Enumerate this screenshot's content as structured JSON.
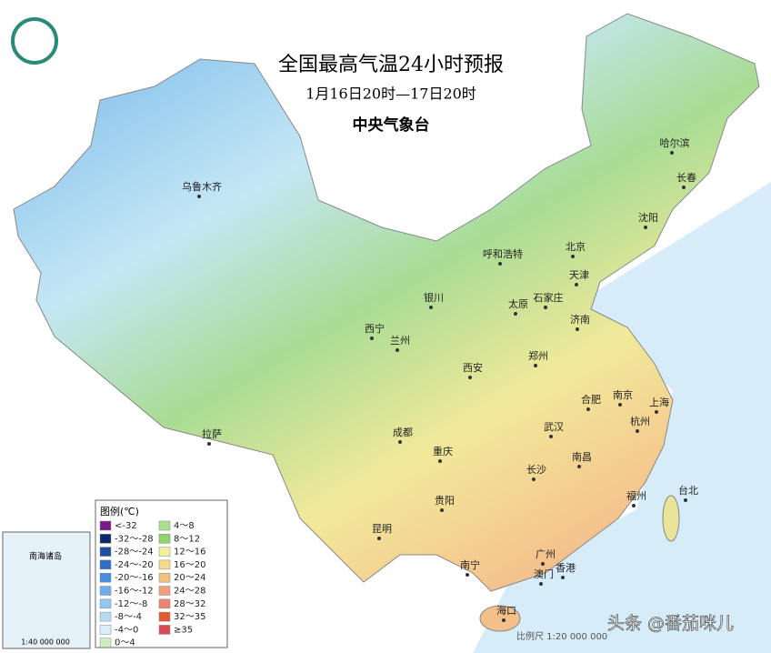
{
  "header": {
    "title": "全国最高气温24小时预报",
    "subtitle": "1月16日20时—17日20时",
    "issuer": "中央气象台"
  },
  "legend": {
    "title": "图例(℃)",
    "items": [
      {
        "label": "<-32",
        "color": "#7a1a86"
      },
      {
        "label": "-32～-28",
        "color": "#0b2a6e"
      },
      {
        "label": "-28～-24",
        "color": "#1f4fa0"
      },
      {
        "label": "-24～-20",
        "color": "#2e6fc4"
      },
      {
        "label": "-20～-16",
        "color": "#4a8ee0"
      },
      {
        "label": "-16～-12",
        "color": "#6eaceb"
      },
      {
        "label": "-12～-8",
        "color": "#93c6f0"
      },
      {
        "label": "-8～-4",
        "color": "#b6dcf5"
      },
      {
        "label": "-4～0",
        "color": "#d8eefa"
      },
      {
        "label": "0～4",
        "color": "#cdeec1"
      },
      {
        "label": "4～8",
        "color": "#a9e08f"
      },
      {
        "label": "8～12",
        "color": "#8fd36c"
      },
      {
        "label": "12～16",
        "color": "#f1ef9b"
      },
      {
        "label": "16～20",
        "color": "#f6d98a"
      },
      {
        "label": "20～24",
        "color": "#f4c07e"
      },
      {
        "label": "24～28",
        "color": "#f1a07a"
      },
      {
        "label": "28～32",
        "color": "#ec8570"
      },
      {
        "label": "32～35",
        "color": "#e4582d"
      },
      {
        "label": "≥35",
        "color": "#d94a55"
      }
    ]
  },
  "cities": [
    "乌鲁木齐",
    "哈尔滨",
    "长春",
    "沈阳",
    "呼和浩特",
    "北京",
    "天津",
    "银川",
    "太原",
    "石家庄",
    "济南",
    "西宁",
    "兰州",
    "郑州",
    "西安",
    "合肥",
    "南京",
    "上海",
    "成都",
    "武汉",
    "杭州",
    "重庆",
    "南昌",
    "长沙",
    "拉萨",
    "贵阳",
    "福州",
    "台北",
    "昆明",
    "广州",
    "南宁",
    "澳门",
    "香港",
    "海口"
  ],
  "inset": {
    "label": "南海诸岛",
    "scale": "1:40 000 000"
  },
  "scale": "比例尺 1:20 000 000",
  "watermark": "头条 @番茄咪儿"
}
